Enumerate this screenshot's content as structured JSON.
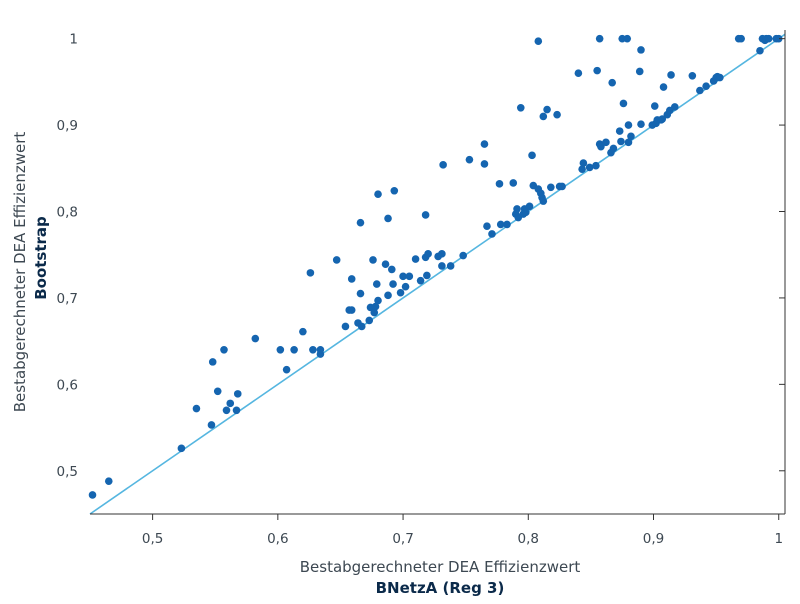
{
  "colors": {
    "point": "#1565b0",
    "line": "#55b6e0",
    "axis": "#333333",
    "text": "#3d4852",
    "title_bold": "#0b2a4a"
  },
  "chart_data": {
    "type": "scatter",
    "xlabel": "Bestabgerechneter  DEA  Effizienzwert",
    "xlabel_bold": "BNetzA (Reg 3)",
    "ylabel": "Bestabgerechneter  DEA  Effizienzwert",
    "ylabel_bold": "Bootstrap",
    "xlim": [
      0.45,
      1.005
    ],
    "ylim": [
      0.45,
      1.01
    ],
    "x_ticks": [
      0.5,
      0.6,
      0.7,
      0.8,
      0.9,
      1
    ],
    "x_tick_labels": [
      "0,5",
      "0,6",
      "0,7",
      "0,8",
      "0,9",
      "1"
    ],
    "y_ticks": [
      0.5,
      0.6,
      0.7,
      0.8,
      0.9,
      1
    ],
    "y_tick_labels": [
      "0,5",
      "0,6",
      "0,7",
      "0,8",
      "0,9",
      "1"
    ],
    "grid": false,
    "reference_line": {
      "type": "diagonal",
      "label": ""
    },
    "series": [
      {
        "points": [
          [
            0.452,
            0.472
          ],
          [
            0.465,
            0.488
          ],
          [
            0.523,
            0.526
          ],
          [
            0.535,
            0.572
          ],
          [
            0.547,
            0.553
          ],
          [
            0.548,
            0.626
          ],
          [
            0.552,
            0.592
          ],
          [
            0.557,
            0.64
          ],
          [
            0.559,
            0.57
          ],
          [
            0.562,
            0.578
          ],
          [
            0.567,
            0.57
          ],
          [
            0.568,
            0.589
          ],
          [
            0.582,
            0.653
          ],
          [
            0.602,
            0.64
          ],
          [
            0.607,
            0.617
          ],
          [
            0.613,
            0.64
          ],
          [
            0.62,
            0.661
          ],
          [
            0.626,
            0.729
          ],
          [
            0.628,
            0.64
          ],
          [
            0.634,
            0.635
          ],
          [
            0.634,
            0.64
          ],
          [
            0.647,
            0.744
          ],
          [
            0.654,
            0.667
          ],
          [
            0.657,
            0.686
          ],
          [
            0.659,
            0.686
          ],
          [
            0.659,
            0.722
          ],
          [
            0.664,
            0.671
          ],
          [
            0.666,
            0.787
          ],
          [
            0.666,
            0.705
          ],
          [
            0.667,
            0.667
          ],
          [
            0.673,
            0.674
          ],
          [
            0.674,
            0.689
          ],
          [
            0.676,
            0.744
          ],
          [
            0.677,
            0.683
          ],
          [
            0.678,
            0.69
          ],
          [
            0.679,
            0.716
          ],
          [
            0.68,
            0.82
          ],
          [
            0.68,
            0.697
          ],
          [
            0.686,
            0.739
          ],
          [
            0.688,
            0.792
          ],
          [
            0.688,
            0.703
          ],
          [
            0.691,
            0.733
          ],
          [
            0.692,
            0.716
          ],
          [
            0.693,
            0.824
          ],
          [
            0.698,
            0.706
          ],
          [
            0.7,
            0.725
          ],
          [
            0.702,
            0.713
          ],
          [
            0.705,
            0.725
          ],
          [
            0.71,
            0.745
          ],
          [
            0.714,
            0.72
          ],
          [
            0.718,
            0.796
          ],
          [
            0.718,
            0.747
          ],
          [
            0.719,
            0.726
          ],
          [
            0.72,
            0.751
          ],
          [
            0.728,
            0.748
          ],
          [
            0.731,
            0.751
          ],
          [
            0.731,
            0.737
          ],
          [
            0.732,
            0.854
          ],
          [
            0.738,
            0.737
          ],
          [
            0.748,
            0.749
          ],
          [
            0.753,
            0.86
          ],
          [
            0.765,
            0.855
          ],
          [
            0.765,
            0.878
          ],
          [
            0.767,
            0.783
          ],
          [
            0.771,
            0.774
          ],
          [
            0.777,
            0.832
          ],
          [
            0.778,
            0.785
          ],
          [
            0.783,
            0.785
          ],
          [
            0.788,
            0.833
          ],
          [
            0.79,
            0.797
          ],
          [
            0.791,
            0.803
          ],
          [
            0.792,
            0.793
          ],
          [
            0.794,
            0.92
          ],
          [
            0.796,
            0.797
          ],
          [
            0.797,
            0.803
          ],
          [
            0.798,
            0.799
          ],
          [
            0.801,
            0.806
          ],
          [
            0.803,
            0.865
          ],
          [
            0.804,
            0.83
          ],
          [
            0.808,
            0.826
          ],
          [
            0.808,
            0.997
          ],
          [
            0.81,
            0.821
          ],
          [
            0.811,
            0.816
          ],
          [
            0.812,
            0.812
          ],
          [
            0.812,
            0.91
          ],
          [
            0.815,
            0.918
          ],
          [
            0.818,
            0.828
          ],
          [
            0.823,
            0.912
          ],
          [
            0.825,
            0.829
          ],
          [
            0.827,
            0.829
          ],
          [
            0.84,
            0.96
          ],
          [
            0.843,
            0.849
          ],
          [
            0.844,
            0.856
          ],
          [
            0.849,
            0.851
          ],
          [
            0.854,
            0.853
          ],
          [
            0.855,
            0.963
          ],
          [
            0.857,
            0.878
          ],
          [
            0.857,
            1.0
          ],
          [
            0.858,
            0.875
          ],
          [
            0.862,
            0.88
          ],
          [
            0.866,
            0.868
          ],
          [
            0.867,
            0.949
          ],
          [
            0.868,
            0.873
          ],
          [
            0.873,
            0.893
          ],
          [
            0.874,
            0.881
          ],
          [
            0.875,
            1.0
          ],
          [
            0.876,
            0.925
          ],
          [
            0.879,
            1.0
          ],
          [
            0.88,
            0.88
          ],
          [
            0.88,
            0.9
          ],
          [
            0.882,
            0.887
          ],
          [
            0.889,
            0.962
          ],
          [
            0.89,
            0.987
          ],
          [
            0.89,
            0.901
          ],
          [
            0.899,
            0.9
          ],
          [
            0.901,
            0.922
          ],
          [
            0.902,
            0.902
          ],
          [
            0.903,
            0.906
          ],
          [
            0.906,
            0.906
          ],
          [
            0.907,
            0.907
          ],
          [
            0.908,
            0.944
          ],
          [
            0.911,
            0.912
          ],
          [
            0.913,
            0.917
          ],
          [
            0.914,
            0.958
          ],
          [
            0.917,
            0.921
          ],
          [
            0.931,
            0.957
          ],
          [
            0.937,
            0.94
          ],
          [
            0.942,
            0.945
          ],
          [
            0.948,
            0.951
          ],
          [
            0.95,
            0.955
          ],
          [
            0.951,
            0.956
          ],
          [
            0.953,
            0.955
          ],
          [
            0.968,
            1.0
          ],
          [
            0.97,
            1.0
          ],
          [
            0.985,
            0.986
          ],
          [
            0.987,
            1.0
          ],
          [
            0.989,
            0.998
          ],
          [
            0.99,
            1.0
          ],
          [
            0.992,
            1.0
          ],
          [
            0.998,
            1.0
          ],
          [
            1.0,
            1.0
          ]
        ]
      }
    ]
  }
}
